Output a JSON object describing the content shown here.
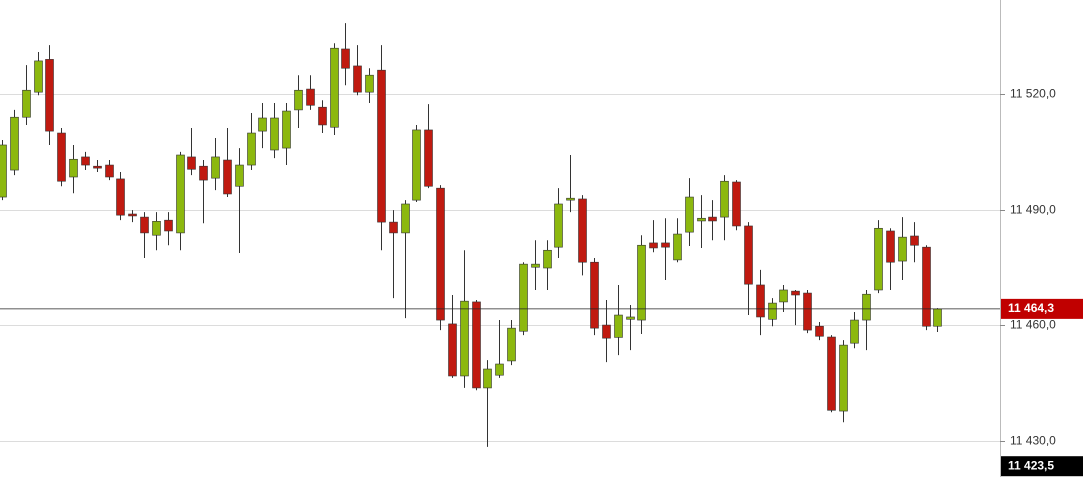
{
  "chart_data": {
    "type": "candlestick",
    "up_color": "#8cb80e",
    "down_color": "#c01a10",
    "ylim": [
      11420.7,
      11544.4
    ],
    "yticks": [
      {
        "value": 11430,
        "label": "11 430,0"
      },
      {
        "value": 11460,
        "label": "11 460,0"
      },
      {
        "value": 11490,
        "label": "11 490,0"
      },
      {
        "value": 11520,
        "label": "11 520,0"
      }
    ],
    "grid": true,
    "markers": [
      {
        "value": 11464.3,
        "label": "11 464,3",
        "color": "#c00000",
        "line": true
      },
      {
        "value": 11423.5,
        "label": "11 423,5",
        "color": "#000000",
        "line": false
      }
    ],
    "open": [
      11493.3,
      11500.3,
      11514,
      11520.5,
      11529,
      11509.9,
      11498.5,
      11503.7,
      11501.3,
      11501.6,
      11498,
      11488.9,
      11488.1,
      11483.4,
      11487.3,
      11484,
      11503.7,
      11501.3,
      11498.2,
      11502.9,
      11496.1,
      11501.6,
      11510.4,
      11505.5,
      11506,
      11515.9,
      11521.3,
      11516.6,
      11511.4,
      11531.7,
      11527.3,
      11520.5,
      11526.2,
      11486.8,
      11484,
      11492.5,
      11510.7,
      11495.6,
      11460.4,
      11446.9,
      11466.1,
      11443.8,
      11447.1,
      11450.8,
      11458.5,
      11475.1,
      11474.9,
      11480.3,
      11492.5,
      11492.8,
      11476.4,
      11460.1,
      11456.9,
      11461.6,
      11461.4,
      11481.4,
      11481.4,
      11477,
      11484.2,
      11487.1,
      11488.1,
      11488.1,
      11497.2,
      11485.8,
      11470.5,
      11461.6,
      11466.1,
      11468.9,
      11468.4,
      11459.8,
      11457,
      11437.8,
      11455.4,
      11461.4,
      11469.2,
      11484.5,
      11476.7,
      11483.2,
      11480.3,
      11459.8
    ],
    "high": [
      11508.1,
      11515.9,
      11527.5,
      11530.9,
      11532.7,
      11511.2,
      11506.8,
      11505,
      11502.9,
      11502.9,
      11499.8,
      11489.9,
      11489.4,
      11489.4,
      11489.4,
      11505,
      11511.2,
      11502.9,
      11508.6,
      11511.2,
      11506,
      11515.1,
      11517.7,
      11517.7,
      11517.7,
      11524.9,
      11524.9,
      11518.4,
      11533.2,
      11538.4,
      11532.7,
      11526.7,
      11532.7,
      11489.9,
      11492.5,
      11512,
      11517.4,
      11496.4,
      11467.9,
      11479.5,
      11466.6,
      11451,
      11461.4,
      11461.4,
      11476.4,
      11482.1,
      11482.1,
      11495.6,
      11504.2,
      11493.8,
      11477.5,
      11466.6,
      11470.5,
      11465.3,
      11483.4,
      11487.3,
      11487.8,
      11487.8,
      11498.2,
      11493.8,
      11492.5,
      11499,
      11497.7,
      11486.8,
      11474.4,
      11467.1,
      11470.5,
      11469.2,
      11469.2,
      11460.9,
      11457.5,
      11456.2,
      11463.5,
      11469.2,
      11487.3,
      11485.2,
      11488.1,
      11486.8,
      11480.8,
      11464.5
    ],
    "low": [
      11492.5,
      11499,
      11512,
      11519.7,
      11506.8,
      11496.1,
      11494.3,
      11500.3,
      11499.8,
      11497.7,
      11487.3,
      11486.8,
      11477.5,
      11479.5,
      11480.8,
      11479.5,
      11499,
      11486.5,
      11495.1,
      11493.3,
      11478.8,
      11500.3,
      11506,
      11503.4,
      11501.6,
      11511.2,
      11515.9,
      11509.9,
      11509.4,
      11522.3,
      11519.7,
      11517.7,
      11479.5,
      11467.1,
      11461.9,
      11492,
      11495.6,
      11458.8,
      11446.4,
      11443.8,
      11443.2,
      11428.5,
      11446.4,
      11449.7,
      11457.5,
      11469.2,
      11469.2,
      11477.5,
      11489.4,
      11473,
      11457.5,
      11450.5,
      11452.3,
      11453.6,
      11457.8,
      11479,
      11471.8,
      11476.4,
      11480.6,
      11480.1,
      11482.1,
      11482.1,
      11484.7,
      11462.7,
      11457.5,
      11459.8,
      11463.5,
      11460.1,
      11458,
      11456.2,
      11437.5,
      11434.9,
      11454.1,
      11453.6,
      11468.4,
      11469.2,
      11471.8,
      11476.4,
      11458.8,
      11458.3
    ],
    "close": [
      11506.8,
      11514,
      11521,
      11528.6,
      11510.4,
      11497.4,
      11503.1,
      11501.6,
      11500.8,
      11498.5,
      11488.6,
      11488.4,
      11484,
      11487,
      11484.5,
      11504.2,
      11500.5,
      11497.7,
      11503.7,
      11494.1,
      11501.6,
      11509.9,
      11513.8,
      11513.8,
      11515.6,
      11521,
      11517.1,
      11512,
      11531.9,
      11526.7,
      11520.5,
      11524.9,
      11486.8,
      11484,
      11491.5,
      11510.7,
      11496.1,
      11461.4,
      11446.9,
      11466.3,
      11443.8,
      11448.7,
      11450,
      11459.3,
      11475.9,
      11475.9,
      11479.5,
      11491.5,
      11493,
      11476.4,
      11459.3,
      11456.7,
      11462.7,
      11462.2,
      11480.8,
      11480.1,
      11480.3,
      11483.7,
      11493.3,
      11487.8,
      11487.1,
      11497.4,
      11485.8,
      11470.7,
      11462.2,
      11465.8,
      11469.2,
      11467.9,
      11458.8,
      11457.2,
      11438,
      11454.9,
      11461.4,
      11468.1,
      11485.2,
      11476.4,
      11482.9,
      11480.8,
      11459.8,
      11464.3
    ]
  }
}
